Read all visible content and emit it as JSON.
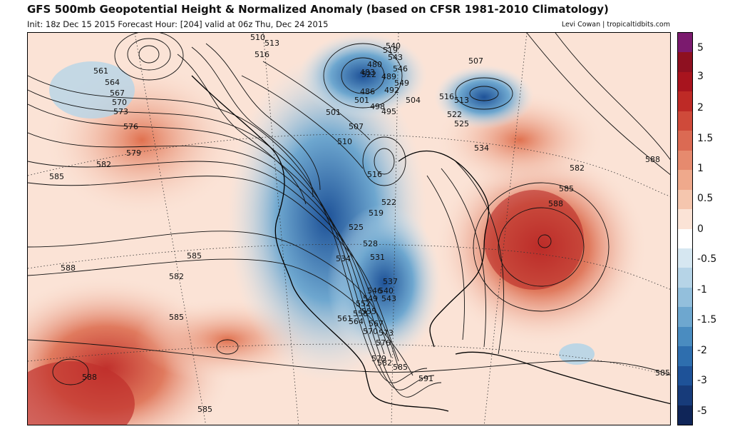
{
  "header": {
    "title": "GFS 500mb Geopotential Height & Normalized Anomaly (based on CFSR 1981-2010 Climatology)",
    "subtitle": "Init: 18z Dec 15 2015   Forecast Hour: [204]   valid at 06z Thu, Dec 24 2015",
    "credit": "Levi Cowan | tropicaltidbits.com"
  },
  "colorbar": {
    "colors": [
      "#7b1a6e",
      "#8e1020",
      "#a8141e",
      "#be2a26",
      "#cf4a3a",
      "#db6a53",
      "#e68a6e",
      "#efa98c",
      "#f5c6ae",
      "#fbe3d6",
      "#ffffff",
      "#d6e7f1",
      "#b6d4e7",
      "#93bfdc",
      "#6ea7cf",
      "#4a8cc0",
      "#2e6eae",
      "#1e5298",
      "#173b7a",
      "#0f2558"
    ],
    "tick_labels": [
      "5",
      "3",
      "2",
      "1.5",
      "1",
      "0.5",
      "0",
      "-0.5",
      "-1",
      "-1.5",
      "-2",
      "-3",
      "-5"
    ]
  },
  "map": {
    "contour_labels": [
      "540",
      "543",
      "546",
      "549",
      "561",
      "564",
      "567",
      "570",
      "573",
      "576",
      "579",
      "585",
      "582",
      "588",
      "522",
      "519",
      "516",
      "513",
      "510",
      "507",
      "504",
      "501",
      "498",
      "495",
      "492",
      "489",
      "486",
      "483",
      "480",
      "516",
      "513",
      "522",
      "525",
      "534",
      "510",
      "507",
      "501",
      "516",
      "519",
      "522",
      "525",
      "528",
      "531",
      "534",
      "537",
      "540",
      "543",
      "546",
      "549",
      "552",
      "555",
      "558",
      "561",
      "564",
      "567",
      "570",
      "573",
      "576",
      "579",
      "582",
      "585",
      "591",
      "588",
      "585",
      "582",
      "588",
      "585",
      "582",
      "585",
      "588",
      "585",
      "585"
    ]
  }
}
